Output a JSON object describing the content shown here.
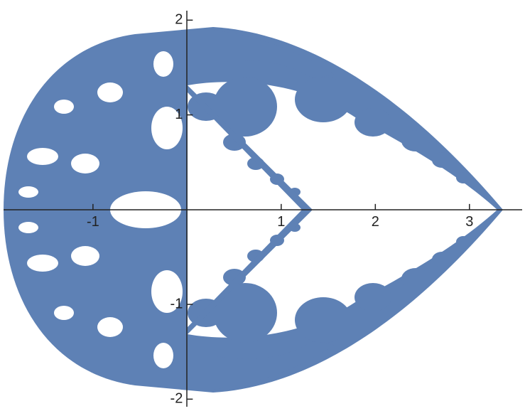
{
  "chart_data": {
    "type": "region",
    "color": "#5e81b5",
    "xlim": [
      -1.95,
      3.56
    ],
    "ylim": [
      -2.08,
      2.1
    ],
    "xticks": [
      -1,
      1,
      2,
      3
    ],
    "yticks": [
      -2,
      -1,
      1,
      2
    ]
  }
}
